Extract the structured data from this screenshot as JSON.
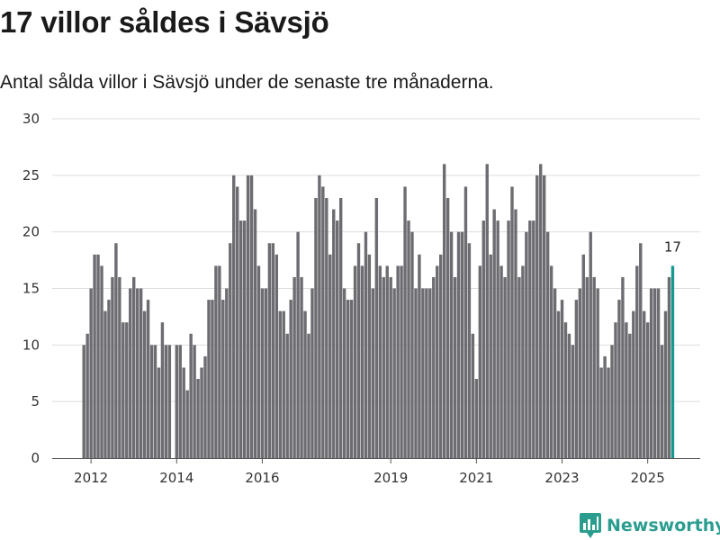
{
  "header": {
    "title": "17 villor såldes i Sävsjö",
    "subtitle": "Antal sålda villor i Sävsjö under de senaste tre månaderna."
  },
  "brand": {
    "name": "Newsworthy",
    "icon": "newsworthy-logo-icon"
  },
  "colors": {
    "bar": "#6d6c71",
    "highlight": "#18998f",
    "grid": "#dddddd",
    "brand": "#2a9d8f"
  },
  "chart_data": {
    "type": "bar",
    "title": "17 villor såldes i Sävsjö",
    "xlabel": "",
    "ylabel": "",
    "ylim": [
      0,
      30
    ],
    "yticks": [
      0,
      5,
      10,
      15,
      20,
      25,
      30
    ],
    "grid": true,
    "start": "2011-11",
    "x_tick_labels": [
      {
        "label": "2012",
        "index": 2
      },
      {
        "label": "2014",
        "index": 26
      },
      {
        "label": "2016",
        "index": 50
      },
      {
        "label": "2019",
        "index": 86
      },
      {
        "label": "2021",
        "index": 110
      },
      {
        "label": "2023",
        "index": 134
      },
      {
        "label": "2025",
        "index": 158
      }
    ],
    "values": [
      10,
      11,
      15,
      18,
      18,
      17,
      13,
      14,
      16,
      19,
      16,
      12,
      12,
      15,
      16,
      15,
      15,
      13,
      14,
      10,
      10,
      8,
      12,
      10,
      10,
      0,
      10,
      10,
      8,
      6,
      11,
      10,
      7,
      8,
      9,
      14,
      14,
      17,
      17,
      14,
      15,
      19,
      25,
      24,
      21,
      21,
      25,
      25,
      22,
      17,
      15,
      15,
      19,
      19,
      18,
      13,
      13,
      11,
      14,
      16,
      20,
      16,
      13,
      11,
      15,
      23,
      25,
      24,
      23,
      18,
      22,
      21,
      23,
      15,
      14,
      14,
      17,
      19,
      17,
      20,
      18,
      15,
      23,
      17,
      16,
      17,
      16,
      15,
      17,
      17,
      24,
      21,
      20,
      15,
      18,
      15,
      15,
      15,
      16,
      17,
      18,
      26,
      23,
      20,
      16,
      20,
      20,
      24,
      19,
      11,
      7,
      17,
      21,
      26,
      18,
      22,
      21,
      17,
      16,
      21,
      24,
      22,
      16,
      17,
      20,
      21,
      21,
      25,
      26,
      25,
      20,
      17,
      15,
      13,
      14,
      12,
      11,
      10,
      14,
      15,
      18,
      16,
      20,
      16,
      15,
      8,
      9,
      8,
      10,
      12,
      14,
      16,
      12,
      11,
      13,
      17,
      19,
      13,
      12,
      15,
      15,
      15,
      10,
      13,
      16,
      17
    ],
    "highlight_last": true,
    "annotations": [
      {
        "label": "17",
        "index": 165
      }
    ]
  }
}
